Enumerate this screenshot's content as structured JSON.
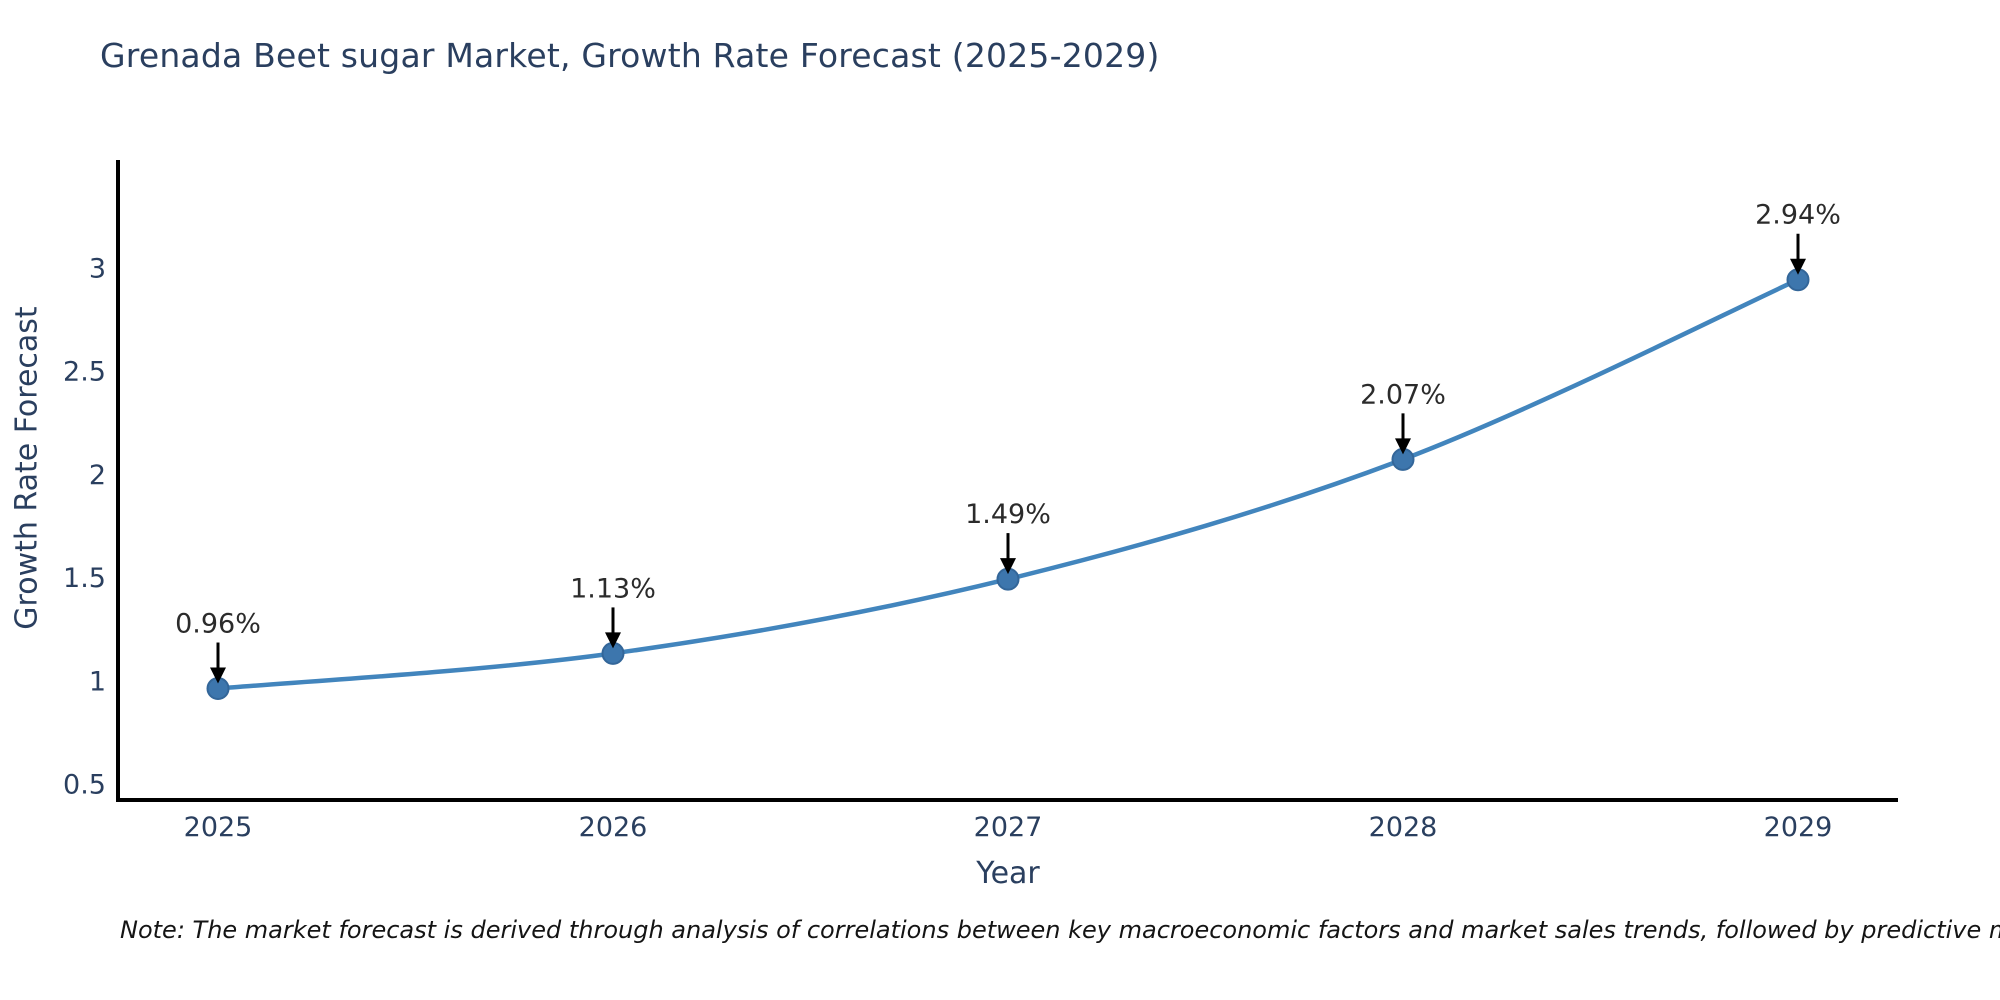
{
  "title": "Grenada Beet sugar Market, Growth Rate Forecast (2025-2029)",
  "note": "Note: The market forecast is derived through analysis of correlations between key macroeconomic factors and market sales trends, followed by predictive modeling to project future sales",
  "chart_data": {
    "type": "line",
    "title": "Grenada Beet sugar Market, Growth Rate Forecast (2025-2029)",
    "xlabel": "Year",
    "ylabel": "Growth Rate Forecast",
    "categories": [
      "2025",
      "2026",
      "2027",
      "2028",
      "2029"
    ],
    "values": [
      0.96,
      1.13,
      1.49,
      2.07,
      2.94
    ],
    "point_labels": [
      "0.96%",
      "1.13%",
      "1.49%",
      "2.07%",
      "2.94%"
    ],
    "yticks": [
      0.5,
      1,
      1.5,
      2,
      2.5,
      3
    ],
    "ylim": [
      0.42,
      3.52
    ],
    "grid": false,
    "legend": false,
    "annotation_arrows": true,
    "colors": {
      "line": "#4285bd",
      "marker_fill": "#3d76ad",
      "marker_edge": "#336699",
      "axis": "#000000",
      "tick_label": "#2a3f5f",
      "annotation_text": "#2b2b2b",
      "annotation_arrow": "#000000",
      "title": "#2a3f5f"
    }
  }
}
